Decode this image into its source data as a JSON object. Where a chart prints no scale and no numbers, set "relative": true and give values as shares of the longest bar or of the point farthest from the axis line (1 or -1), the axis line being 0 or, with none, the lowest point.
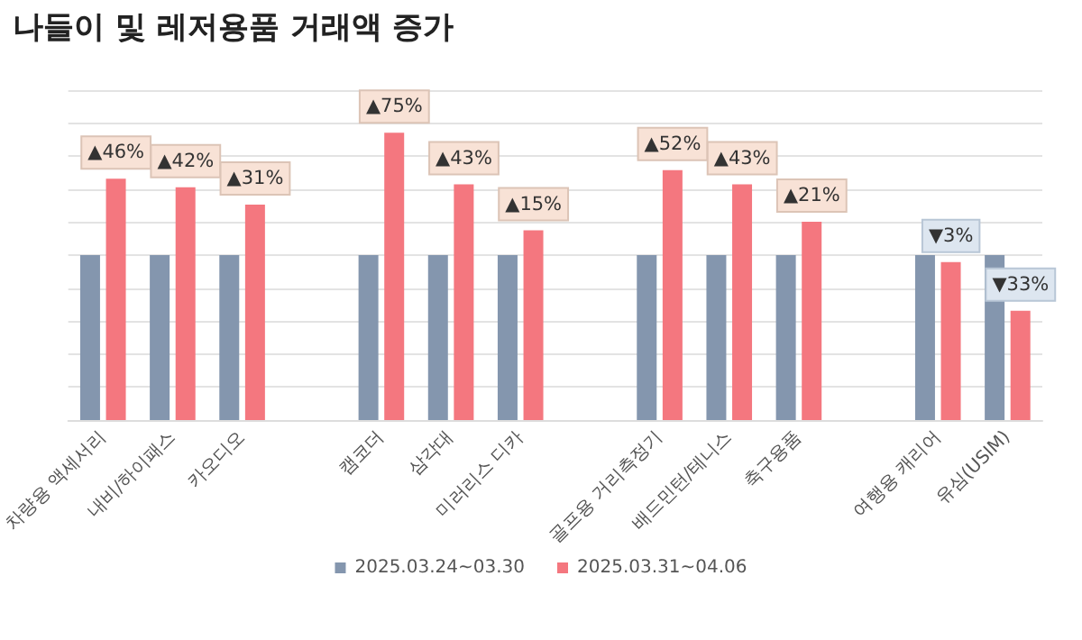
{
  "chart_data": {
    "type": "bar",
    "title": "나들이 및 레저용품 거래액 증가",
    "relative": true,
    "grid": "y",
    "legend": "bottom",
    "categories": [
      "차량용 액세서리",
      "내비/하이패스",
      "카오디오",
      null,
      "캠코더",
      "삼각대",
      "미러리스 디카",
      null,
      "골프용 거리측정기",
      "배드민턴/테니스",
      "축구용품",
      null,
      "여행용 캐리어",
      "유심(USIM)"
    ],
    "series": [
      {
        "name": "2025.03.24~03.30",
        "color": "#8496ae",
        "values": [
          0.574,
          0.574,
          0.574,
          null,
          0.574,
          0.574,
          0.574,
          null,
          0.574,
          0.574,
          0.574,
          null,
          0.574,
          0.574
        ]
      },
      {
        "name": "2025.03.31~04.06",
        "color": "#f4777f",
        "values": [
          0.84,
          0.81,
          0.75,
          null,
          1,
          0.82,
          0.66,
          null,
          0.87,
          0.82,
          0.69,
          null,
          0.55,
          0.38
        ]
      }
    ],
    "annotations": [
      {
        "text": "▲46%",
        "x": "차량용 액세서리",
        "y": 0.84
      },
      {
        "text": "▲42%",
        "x": "내비/하이패스",
        "y": 0.81
      },
      {
        "text": "▲31%",
        "x": "카오디오",
        "y": 0.75
      },
      {
        "text": "▲75%",
        "x": "캠코더",
        "y": 1
      },
      {
        "text": "▲43%",
        "x": "삼각대",
        "y": 0.82
      },
      {
        "text": "▲15%",
        "x": "미러리스 디카",
        "y": 0.66
      },
      {
        "text": "▲52%",
        "x": "골프용 거리측정기",
        "y": 0.87
      },
      {
        "text": "▲43%",
        "x": "배드민턴/테니스",
        "y": 0.82
      },
      {
        "text": "▲21%",
        "x": "축구용품",
        "y": 0.69
      },
      {
        "text": "▼3%",
        "x": "여행용 캐리어",
        "y": 0.55
      },
      {
        "text": "▼33%",
        "x": "유심(USIM)",
        "y": 0.38
      }
    ]
  }
}
